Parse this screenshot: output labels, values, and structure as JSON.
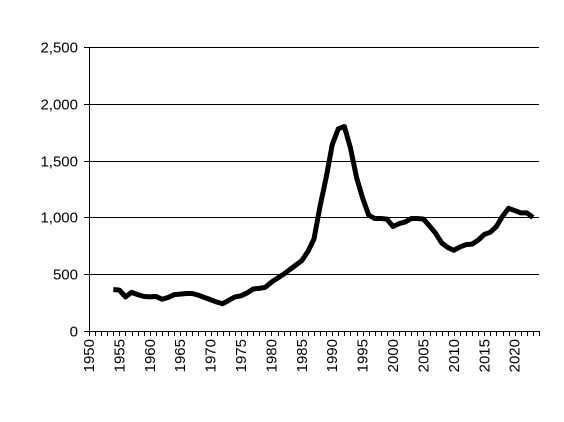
{
  "chart_data": {
    "type": "line",
    "title": "",
    "xlabel": "",
    "ylabel": "",
    "xlim": [
      1950,
      2024
    ],
    "ylim": [
      0,
      2500
    ],
    "grid": "horizontal",
    "legend": "none",
    "colors": {
      "line": "#000000",
      "grid": "#000000",
      "axis": "#000000",
      "background": "#ffffff"
    },
    "y_ticks": [
      {
        "value": 0,
        "label": "0"
      },
      {
        "value": 500,
        "label": "500"
      },
      {
        "value": 1000,
        "label": "1,000"
      },
      {
        "value": 1500,
        "label": "1,500"
      },
      {
        "value": 2000,
        "label": "2,000"
      },
      {
        "value": 2500,
        "label": "2,500"
      }
    ],
    "x_tick_labels": [
      {
        "value": 1950,
        "label": "1950"
      },
      {
        "value": 1955,
        "label": "1955"
      },
      {
        "value": 1960,
        "label": "1960"
      },
      {
        "value": 1965,
        "label": "1965"
      },
      {
        "value": 1970,
        "label": "1970"
      },
      {
        "value": 1975,
        "label": "1975"
      },
      {
        "value": 1980,
        "label": "1980"
      },
      {
        "value": 1985,
        "label": "1985"
      },
      {
        "value": 1990,
        "label": "1990"
      },
      {
        "value": 1995,
        "label": "1995"
      },
      {
        "value": 2000,
        "label": "2000"
      },
      {
        "value": 2005,
        "label": "2005"
      },
      {
        "value": 2010,
        "label": "2010"
      },
      {
        "value": 2015,
        "label": "2015"
      },
      {
        "value": 2020,
        "label": "2020"
      }
    ],
    "series": [
      {
        "x": [
          1954,
          1955,
          1956,
          1957,
          1958,
          1959,
          1960,
          1961,
          1962,
          1963,
          1964,
          1965,
          1966,
          1967,
          1968,
          1969,
          1970,
          1971,
          1972,
          1973,
          1974,
          1975,
          1976,
          1977,
          1978,
          1979,
          1980,
          1981,
          1982,
          1983,
          1984,
          1985,
          1986,
          1987,
          1988,
          1989,
          1990,
          1991,
          1992,
          1993,
          1994,
          1995,
          1996,
          1997,
          1998,
          1999,
          2000,
          2001,
          2002,
          2003,
          2004,
          2005,
          2006,
          2007,
          2008,
          2009,
          2010,
          2011,
          2012,
          2013,
          2014,
          2015,
          2016,
          2017,
          2018,
          2019,
          2020,
          2021,
          2022,
          2023
        ],
        "values": [
          365,
          360,
          300,
          340,
          320,
          305,
          300,
          305,
          280,
          295,
          320,
          325,
          330,
          330,
          315,
          295,
          275,
          255,
          240,
          270,
          300,
          310,
          335,
          370,
          375,
          385,
          430,
          465,
          500,
          540,
          580,
          620,
          700,
          810,
          1100,
          1350,
          1640,
          1780,
          1800,
          1610,
          1350,
          1170,
          1020,
          990,
          990,
          985,
          920,
          945,
          960,
          990,
          990,
          985,
          925,
          860,
          775,
          735,
          710,
          740,
          760,
          765,
          800,
          850,
          870,
          920,
          1010,
          1080,
          1060,
          1040,
          1040,
          1000
        ]
      }
    ]
  }
}
